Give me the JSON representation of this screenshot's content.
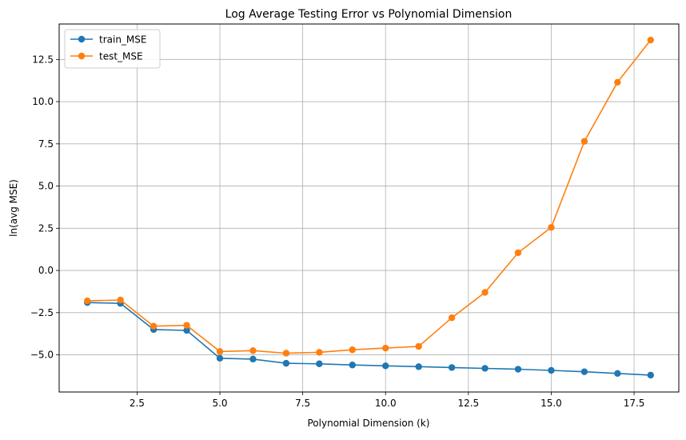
{
  "chart_data": {
    "type": "line",
    "title": "Log Average Testing Error vs Polynomial Dimension",
    "xlabel": "Polynomial Dimension (k)",
    "ylabel": "ln(avg MSE)",
    "xlim": [
      0.15,
      18.85
    ],
    "ylim": [
      -7.2,
      14.6
    ],
    "xticks": [
      2.5,
      5.0,
      7.5,
      10.0,
      12.5,
      15.0,
      17.5
    ],
    "xtick_labels": [
      "2.5",
      "5.0",
      "7.5",
      "10.0",
      "12.5",
      "15.0",
      "17.5"
    ],
    "yticks": [
      -5.0,
      -2.5,
      0.0,
      2.5,
      5.0,
      7.5,
      10.0,
      12.5
    ],
    "ytick_labels": [
      "−5.0",
      "−2.5",
      "0.0",
      "2.5",
      "5.0",
      "7.5",
      "10.0",
      "12.5"
    ],
    "grid": true,
    "legend_position": "upper-left",
    "x": [
      1,
      2,
      3,
      4,
      5,
      6,
      7,
      8,
      9,
      10,
      11,
      12,
      13,
      14,
      15,
      16,
      17,
      18
    ],
    "series": [
      {
        "name": "train_MSE",
        "color": "#1f77b4",
        "values": [
          -1.9,
          -1.95,
          -3.5,
          -3.55,
          -5.2,
          -5.25,
          -5.5,
          -5.53,
          -5.6,
          -5.65,
          -5.7,
          -5.75,
          -5.8,
          -5.85,
          -5.92,
          -6.0,
          -6.1,
          -6.2
        ]
      },
      {
        "name": "test_MSE",
        "color": "#ff7f0e",
        "values": [
          -1.8,
          -1.75,
          -3.3,
          -3.25,
          -4.8,
          -4.75,
          -4.9,
          -4.85,
          -4.7,
          -4.6,
          -4.5,
          -2.8,
          -1.3,
          1.05,
          2.55,
          7.65,
          11.15,
          13.65
        ]
      }
    ]
  }
}
